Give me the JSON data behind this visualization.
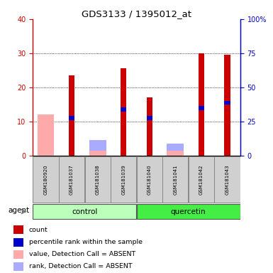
{
  "title": "GDS3133 / 1395012_at",
  "samples": [
    "GSM180920",
    "GSM181037",
    "GSM181038",
    "GSM181039",
    "GSM181040",
    "GSM181041",
    "GSM181042",
    "GSM181043"
  ],
  "count_values": [
    0,
    23.5,
    0,
    25.5,
    17.0,
    0,
    30.0,
    29.5
  ],
  "rank_values": [
    0,
    11.0,
    0,
    13.5,
    11.0,
    0,
    14.0,
    15.5
  ],
  "absent_value_values": [
    12.0,
    0,
    1.5,
    0,
    0,
    1.5,
    0,
    0
  ],
  "absent_rank_values": [
    9.0,
    0,
    4.5,
    0,
    0,
    3.5,
    0,
    0
  ],
  "color_count": "#cc0000",
  "color_rank": "#0000cc",
  "color_absent_value": "#ffaaaa",
  "color_absent_rank": "#aaaaff",
  "ylim_left": [
    0,
    40
  ],
  "ylim_right": [
    0,
    100
  ],
  "yticks_left": [
    0,
    10,
    20,
    30,
    40
  ],
  "yticks_right": [
    0,
    25,
    50,
    75,
    100
  ],
  "ytick_labels_right": [
    "0",
    "25",
    "50",
    "75",
    "100%"
  ],
  "group_control_color": "#bbffbb",
  "group_quercetin_color": "#44ee44",
  "group_labels": [
    "control",
    "quercetin"
  ],
  "legend_items": [
    {
      "label": "count",
      "color": "#cc0000"
    },
    {
      "label": "percentile rank within the sample",
      "color": "#0000cc"
    },
    {
      "label": "value, Detection Call = ABSENT",
      "color": "#ffaaaa"
    },
    {
      "label": "rank, Detection Call = ABSENT",
      "color": "#aaaaff"
    }
  ]
}
